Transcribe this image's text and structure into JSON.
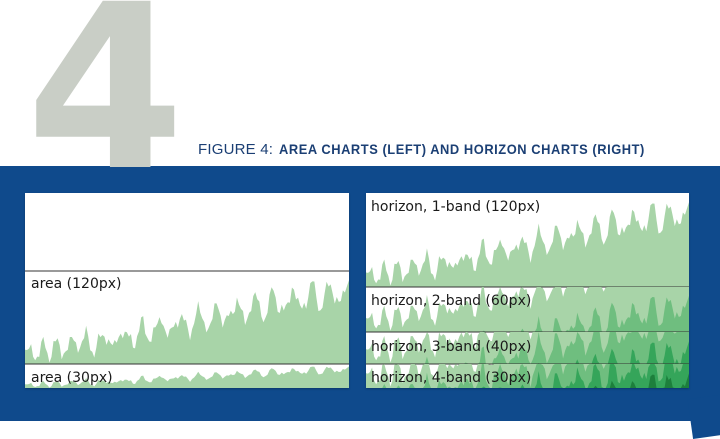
{
  "figure": {
    "number": "4",
    "label": "FIGURE 4:",
    "caption": "AREA CHARTS (LEFT) AND HORIZON CHARTS (RIGHT)"
  },
  "colors": {
    "band_background": "#0f4a8c",
    "numeral": "#c9cec6",
    "title_text": "#1b3f74",
    "area_band_1": "#a8d4a8",
    "area_band_2": "#6fbe7f",
    "area_band_3": "#35a55a",
    "area_band_4": "#1d7f3c"
  },
  "chart_data": [
    {
      "type": "area",
      "label": "area (120px)",
      "bands": 1,
      "height_label": "120px",
      "series": [
        {
          "values": [
            0.12,
            0.16,
            0.08,
            0.14,
            0.2,
            0.1,
            0.18,
            0.22,
            0.12,
            0.16,
            0.28,
            0.18,
            0.24,
            0.3,
            0.2,
            0.14,
            0.26,
            0.34,
            0.22,
            0.18,
            0.3,
            0.38,
            0.26,
            0.22,
            0.34,
            0.44,
            0.32,
            0.28,
            0.4,
            0.5,
            0.36,
            0.3,
            0.42,
            0.56,
            0.4,
            0.34,
            0.46,
            0.6,
            0.46,
            0.38,
            0.5,
            0.66,
            0.5,
            0.42,
            0.56,
            0.72,
            0.54,
            0.46,
            0.6,
            0.76,
            0.58,
            0.5,
            0.64,
            0.82,
            0.62,
            0.52,
            0.66,
            0.86,
            0.66,
            0.58,
            0.7,
            0.9,
            0.7,
            0.62,
            0.74,
            0.88,
            0.72,
            0.64,
            0.76,
            0.92
          ]
        }
      ]
    },
    {
      "type": "area",
      "label": "area (30px)",
      "bands": 1,
      "height_label": "30px",
      "series": [
        {
          "values": [
            0.12,
            0.16,
            0.08,
            0.14,
            0.2,
            0.1,
            0.18,
            0.22,
            0.12,
            0.16,
            0.28,
            0.18,
            0.24,
            0.3,
            0.2,
            0.14,
            0.26,
            0.34,
            0.22,
            0.18,
            0.3,
            0.38,
            0.26,
            0.22,
            0.34,
            0.44,
            0.32,
            0.28,
            0.4,
            0.5,
            0.36,
            0.3,
            0.42,
            0.56,
            0.4,
            0.34,
            0.46,
            0.6,
            0.46,
            0.38,
            0.5,
            0.66,
            0.5,
            0.42,
            0.56,
            0.72,
            0.54,
            0.46,
            0.6,
            0.76,
            0.58,
            0.5,
            0.64,
            0.82,
            0.62,
            0.52,
            0.66,
            0.86,
            0.66,
            0.58,
            0.7,
            0.9,
            0.7,
            0.62,
            0.74,
            0.88,
            0.72,
            0.64,
            0.76,
            0.92
          ]
        }
      ]
    },
    {
      "type": "horizon",
      "label": "horizon, 1-band (120px)",
      "bands": 1,
      "height_label": "120px",
      "series": [
        {
          "values": [
            0.12,
            0.16,
            0.08,
            0.14,
            0.2,
            0.1,
            0.18,
            0.22,
            0.12,
            0.16,
            0.28,
            0.18,
            0.24,
            0.3,
            0.2,
            0.14,
            0.26,
            0.34,
            0.22,
            0.18,
            0.3,
            0.38,
            0.26,
            0.22,
            0.34,
            0.44,
            0.32,
            0.28,
            0.4,
            0.5,
            0.36,
            0.3,
            0.42,
            0.56,
            0.4,
            0.34,
            0.46,
            0.6,
            0.46,
            0.38,
            0.5,
            0.66,
            0.5,
            0.42,
            0.56,
            0.72,
            0.54,
            0.46,
            0.6,
            0.76,
            0.58,
            0.5,
            0.64,
            0.82,
            0.62,
            0.52,
            0.66,
            0.86,
            0.66,
            0.58,
            0.7,
            0.9,
            0.7,
            0.62,
            0.74,
            0.88,
            0.72,
            0.64,
            0.76,
            0.92
          ]
        }
      ]
    },
    {
      "type": "horizon",
      "label": "horizon, 2-band (60px)",
      "bands": 2,
      "height_label": "60px",
      "series": [
        {
          "values": [
            0.12,
            0.16,
            0.08,
            0.14,
            0.2,
            0.1,
            0.18,
            0.22,
            0.12,
            0.16,
            0.28,
            0.18,
            0.24,
            0.3,
            0.2,
            0.14,
            0.26,
            0.34,
            0.22,
            0.18,
            0.3,
            0.38,
            0.26,
            0.22,
            0.34,
            0.44,
            0.32,
            0.28,
            0.4,
            0.5,
            0.36,
            0.3,
            0.42,
            0.56,
            0.4,
            0.34,
            0.46,
            0.6,
            0.46,
            0.38,
            0.5,
            0.66,
            0.5,
            0.42,
            0.56,
            0.72,
            0.54,
            0.46,
            0.6,
            0.76,
            0.58,
            0.5,
            0.64,
            0.82,
            0.62,
            0.52,
            0.66,
            0.86,
            0.66,
            0.58,
            0.7,
            0.9,
            0.7,
            0.62,
            0.74,
            0.88,
            0.72,
            0.64,
            0.76,
            0.92
          ]
        }
      ]
    },
    {
      "type": "horizon",
      "label": "horizon, 3-band (40px)",
      "bands": 3,
      "height_label": "40px",
      "series": [
        {
          "values": [
            0.12,
            0.16,
            0.08,
            0.14,
            0.2,
            0.1,
            0.18,
            0.22,
            0.12,
            0.16,
            0.28,
            0.18,
            0.24,
            0.3,
            0.2,
            0.14,
            0.26,
            0.34,
            0.22,
            0.18,
            0.3,
            0.38,
            0.26,
            0.22,
            0.34,
            0.44,
            0.32,
            0.28,
            0.4,
            0.5,
            0.36,
            0.3,
            0.42,
            0.56,
            0.4,
            0.34,
            0.46,
            0.6,
            0.46,
            0.38,
            0.5,
            0.66,
            0.5,
            0.42,
            0.56,
            0.72,
            0.54,
            0.46,
            0.6,
            0.76,
            0.58,
            0.5,
            0.64,
            0.82,
            0.62,
            0.52,
            0.66,
            0.86,
            0.66,
            0.58,
            0.7,
            0.9,
            0.7,
            0.62,
            0.74,
            0.88,
            0.72,
            0.64,
            0.76,
            0.92
          ]
        }
      ]
    },
    {
      "type": "horizon",
      "label": "horizon, 4-band (30px)",
      "bands": 4,
      "height_label": "30px",
      "series": [
        {
          "values": [
            0.12,
            0.16,
            0.08,
            0.14,
            0.2,
            0.1,
            0.18,
            0.22,
            0.12,
            0.16,
            0.28,
            0.18,
            0.24,
            0.3,
            0.2,
            0.14,
            0.26,
            0.34,
            0.22,
            0.18,
            0.3,
            0.38,
            0.26,
            0.22,
            0.34,
            0.44,
            0.32,
            0.28,
            0.4,
            0.5,
            0.36,
            0.3,
            0.42,
            0.56,
            0.4,
            0.34,
            0.46,
            0.6,
            0.46,
            0.38,
            0.5,
            0.66,
            0.5,
            0.42,
            0.56,
            0.72,
            0.54,
            0.46,
            0.6,
            0.76,
            0.58,
            0.5,
            0.64,
            0.82,
            0.62,
            0.52,
            0.66,
            0.86,
            0.66,
            0.58,
            0.7,
            0.9,
            0.7,
            0.62,
            0.74,
            0.88,
            0.72,
            0.64,
            0.76,
            0.92
          ]
        }
      ]
    }
  ]
}
